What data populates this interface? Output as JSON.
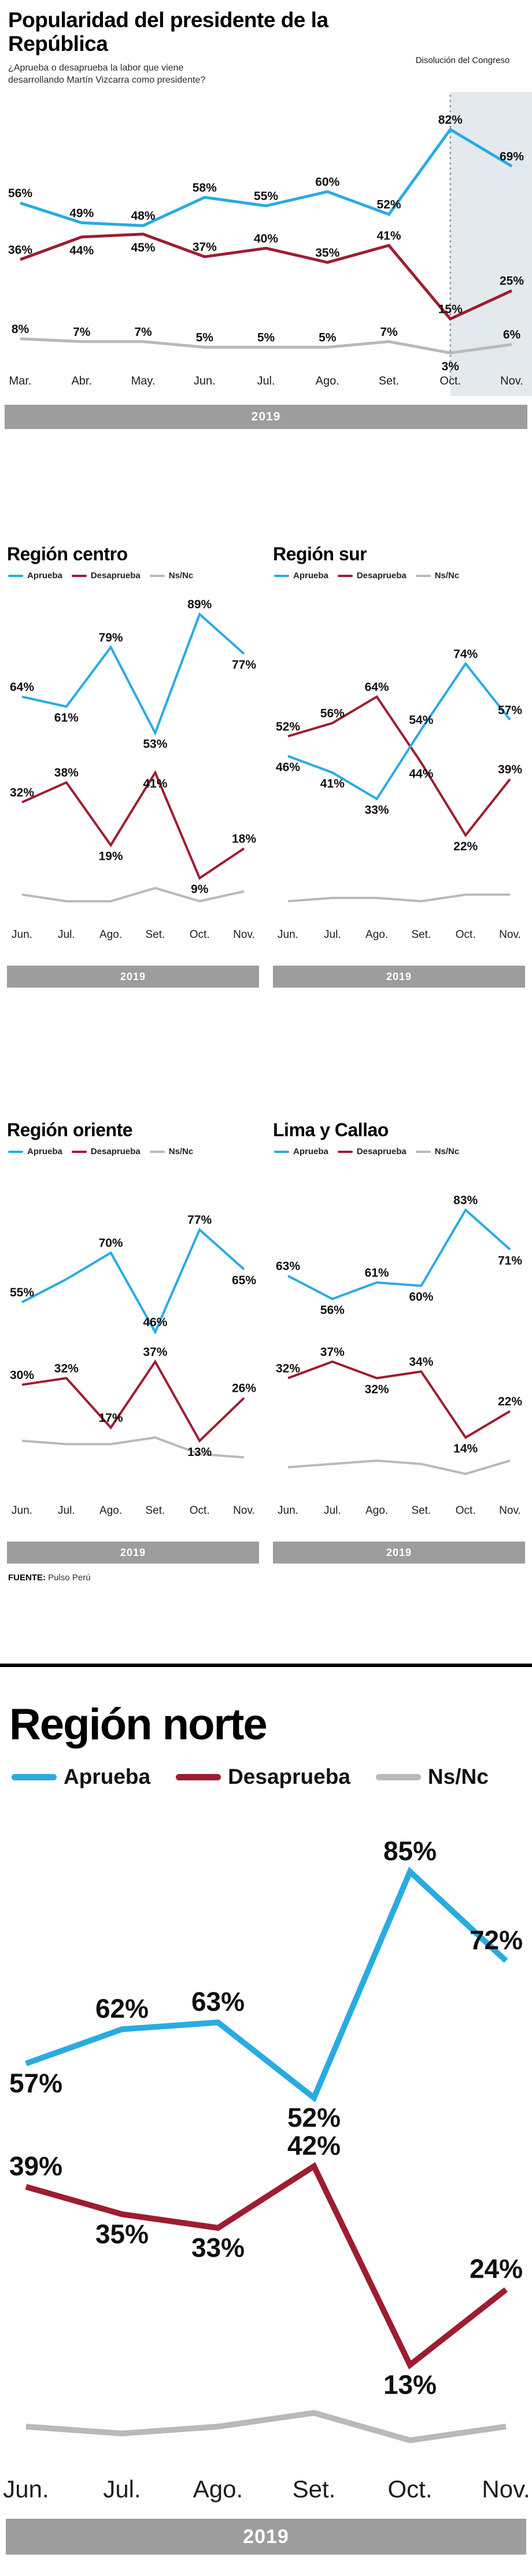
{
  "page": {
    "source_label": "FUENTE:",
    "source_value": "Pulso Perú"
  },
  "colors": {
    "aprueba": "#29abe2",
    "desaprueba": "#9e1d30",
    "nsnc": "#b9b9b9",
    "band": "#e4e9ee",
    "dotted": "#9a9a9a",
    "year_bar": "#9d9d9d",
    "year_text": "#ffffff",
    "label": "#101010",
    "month": "#1d1d1d",
    "divider": "#000000"
  },
  "legend": {
    "items": [
      {
        "label": "Aprueba",
        "color": "aprueba"
      },
      {
        "label": "Desaprueba",
        "color": "desaprueba"
      },
      {
        "label": "Ns/Nc",
        "color": "nsnc"
      }
    ]
  },
  "chart_data": [
    {
      "id": "main",
      "type": "line",
      "title": "Popularidad del presidente de la República",
      "subtitle": "¿Aprueba o desaprueba la labor que viene desarrollando Martín Vizcarra como presidente?",
      "annotation": {
        "text": "Disolución del Congreso",
        "at": "Oct."
      },
      "highlight_from": "Oct.",
      "year": "2019",
      "categories": [
        "Mar.",
        "Abr.",
        "May.",
        "Jun.",
        "Jul.",
        "Ago.",
        "Set.",
        "Oct.",
        "Nov."
      ],
      "ylim": [
        0,
        92
      ],
      "legend_position": "none",
      "grid": false,
      "series": [
        {
          "name": "Aprueba",
          "color": "aprueba",
          "values": [
            56,
            49,
            48,
            58,
            55,
            60,
            52,
            82,
            69
          ],
          "labels": [
            "56%",
            "49%",
            "48%",
            "58%",
            "55%",
            "60%",
            "52%",
            "82%",
            "69%"
          ],
          "label_pos": [
            "a",
            "a",
            "a",
            "a",
            "a",
            "a",
            "a",
            "a",
            "a"
          ]
        },
        {
          "name": "Desaprueba",
          "color": "desaprueba",
          "values": [
            36,
            44,
            45,
            37,
            40,
            35,
            41,
            15,
            25
          ],
          "labels": [
            "36%",
            "44%",
            "45%",
            "37%",
            "40%",
            "35%",
            "41%",
            "15%",
            "25%"
          ],
          "label_pos": [
            "a",
            "b",
            "b",
            "a",
            "a",
            "a",
            "a",
            "a",
            "a"
          ]
        },
        {
          "name": "Ns/Nc",
          "color": "nsnc",
          "values": [
            8,
            7,
            7,
            5,
            5,
            5,
            7,
            3,
            6
          ],
          "labels": [
            "8%",
            "7%",
            "7%",
            "5%",
            "5%",
            "5%",
            "7%",
            "3%",
            "6%"
          ],
          "label_pos": [
            "a",
            "a",
            "a",
            "a",
            "a",
            "a",
            "a",
            "b",
            "a"
          ]
        }
      ]
    },
    {
      "id": "centro",
      "type": "line",
      "title": "Región centro",
      "year": "2019",
      "categories": [
        "Jun.",
        "Jul.",
        "Ago.",
        "Set.",
        "Oct.",
        "Nov."
      ],
      "ylim": [
        0,
        95
      ],
      "legend_position": "top",
      "grid": false,
      "series": [
        {
          "name": "Aprueba",
          "color": "aprueba",
          "values": [
            64,
            61,
            79,
            53,
            89,
            77
          ],
          "labels": [
            "64%",
            "61%",
            "79%",
            "53%",
            "89%",
            "77%"
          ],
          "label_pos": [
            "a",
            "b",
            "a",
            "b",
            "a",
            "b"
          ]
        },
        {
          "name": "Desaprueba",
          "color": "desaprueba",
          "values": [
            32,
            38,
            19,
            41,
            9,
            18
          ],
          "labels": [
            "32%",
            "38%",
            "19%",
            "41%",
            "9%",
            "18%"
          ],
          "label_pos": [
            "a",
            "a",
            "b",
            "b",
            "b",
            "a"
          ]
        },
        {
          "name": "Ns/Nc",
          "color": "nsnc",
          "values": [
            4,
            2,
            2,
            6,
            2,
            5
          ],
          "labels": [
            "",
            "",
            "",
            "",
            "",
            ""
          ],
          "label_pos": [
            "a",
            "a",
            "a",
            "a",
            "a",
            "a"
          ]
        }
      ]
    },
    {
      "id": "sur",
      "type": "line",
      "title": "Región sur",
      "year": "2019",
      "categories": [
        "Jun.",
        "Jul.",
        "Ago.",
        "Set.",
        "Oct.",
        "Nov."
      ],
      "ylim": [
        0,
        95
      ],
      "legend_position": "top",
      "grid": false,
      "series": [
        {
          "name": "Aprueba",
          "color": "aprueba",
          "values": [
            46,
            41,
            33,
            54,
            74,
            57
          ],
          "labels": [
            "46%",
            "41%",
            "33%",
            "54%",
            "74%",
            "57%"
          ],
          "label_pos": [
            "b",
            "b",
            "b",
            "a",
            "a",
            "a"
          ]
        },
        {
          "name": "Desaprueba",
          "color": "desaprueba",
          "values": [
            52,
            56,
            64,
            44,
            22,
            39
          ],
          "labels": [
            "52%",
            "56%",
            "64%",
            "44%",
            "22%",
            "39%"
          ],
          "label_pos": [
            "a",
            "a",
            "a",
            "b",
            "b",
            "a"
          ]
        },
        {
          "name": "Ns/Nc",
          "color": "nsnc",
          "values": [
            2,
            3,
            3,
            2,
            4,
            4
          ],
          "labels": [
            "",
            "",
            "",
            "",
            "",
            ""
          ],
          "label_pos": [
            "a",
            "a",
            "a",
            "a",
            "a",
            "a"
          ]
        }
      ]
    },
    {
      "id": "oriente",
      "type": "line",
      "title": "Región oriente",
      "year": "2019",
      "categories": [
        "Jun.",
        "Jul.",
        "Ago.",
        "Set.",
        "Oct.",
        "Nov."
      ],
      "ylim": [
        0,
        95
      ],
      "legend_position": "top",
      "grid": false,
      "series": [
        {
          "name": "Aprueba",
          "color": "aprueba",
          "values": [
            55,
            62,
            70,
            46,
            77,
            65
          ],
          "labels": [
            "55%",
            "",
            "70%",
            "46%",
            "77%",
            "65%"
          ],
          "label_pos": [
            "a",
            "a",
            "a",
            "a",
            "a",
            "b"
          ]
        },
        {
          "name": "Desaprueba",
          "color": "desaprueba",
          "values": [
            30,
            32,
            17,
            37,
            13,
            26
          ],
          "labels": [
            "30%",
            "32%",
            "17%",
            "37%",
            "13%",
            "26%"
          ],
          "label_pos": [
            "a",
            "a",
            "a",
            "a",
            "b",
            "a"
          ]
        },
        {
          "name": "Ns/Nc",
          "color": "nsnc",
          "values": [
            13,
            12,
            12,
            14,
            9,
            8
          ],
          "labels": [
            "",
            "",
            "",
            "",
            "",
            ""
          ],
          "label_pos": [
            "a",
            "a",
            "a",
            "a",
            "a",
            "a"
          ]
        }
      ]
    },
    {
      "id": "lima",
      "type": "line",
      "title": "Lima y Callao",
      "year": "2019",
      "categories": [
        "Jun.",
        "Jul.",
        "Ago.",
        "Set.",
        "Oct.",
        "Nov."
      ],
      "ylim": [
        0,
        95
      ],
      "legend_position": "top",
      "grid": false,
      "series": [
        {
          "name": "Aprueba",
          "color": "aprueba",
          "values": [
            63,
            56,
            61,
            60,
            83,
            71
          ],
          "labels": [
            "63%",
            "56%",
            "61%",
            "60%",
            "83%",
            "71%"
          ],
          "label_pos": [
            "a",
            "b",
            "a",
            "b",
            "a",
            "b"
          ]
        },
        {
          "name": "Desaprueba",
          "color": "desaprueba",
          "values": [
            32,
            37,
            32,
            34,
            14,
            22
          ],
          "labels": [
            "32%",
            "37%",
            "32%",
            "34%",
            "14%",
            "22%"
          ],
          "label_pos": [
            "a",
            "a",
            "b",
            "a",
            "b",
            "a"
          ]
        },
        {
          "name": "Ns/Nc",
          "color": "nsnc",
          "values": [
            5,
            6,
            7,
            6,
            3,
            7
          ],
          "labels": [
            "",
            "",
            "",
            "",
            "",
            ""
          ],
          "label_pos": [
            "a",
            "a",
            "a",
            "a",
            "a",
            "a"
          ]
        }
      ]
    },
    {
      "id": "norte",
      "type": "line",
      "title": "Región norte",
      "year": "2019",
      "categories": [
        "Jun.",
        "Jul.",
        "Ago.",
        "Set.",
        "Oct.",
        "Nov."
      ],
      "ylim": [
        0,
        92
      ],
      "legend_position": "top",
      "grid": false,
      "series": [
        {
          "name": "Aprueba",
          "color": "aprueba",
          "values": [
            57,
            62,
            63,
            52,
            85,
            72
          ],
          "labels": [
            "57%",
            "62%",
            "63%",
            "52%",
            "85%",
            "72%"
          ],
          "label_pos": [
            "b",
            "a",
            "a",
            "b",
            "a",
            "a"
          ]
        },
        {
          "name": "Desaprueba",
          "color": "desaprueba",
          "values": [
            39,
            35,
            33,
            42,
            13,
            24
          ],
          "labels": [
            "39%",
            "35%",
            "33%",
            "42%",
            "13%",
            "24%"
          ],
          "label_pos": [
            "a",
            "b",
            "b",
            "a",
            "b",
            "a"
          ]
        },
        {
          "name": "Ns/Nc",
          "color": "nsnc",
          "values": [
            4,
            3,
            4,
            6,
            2,
            4
          ],
          "labels": [
            "",
            "",
            "",
            "",
            "",
            ""
          ],
          "label_pos": [
            "a",
            "a",
            "a",
            "a",
            "a",
            "a"
          ]
        }
      ]
    }
  ]
}
